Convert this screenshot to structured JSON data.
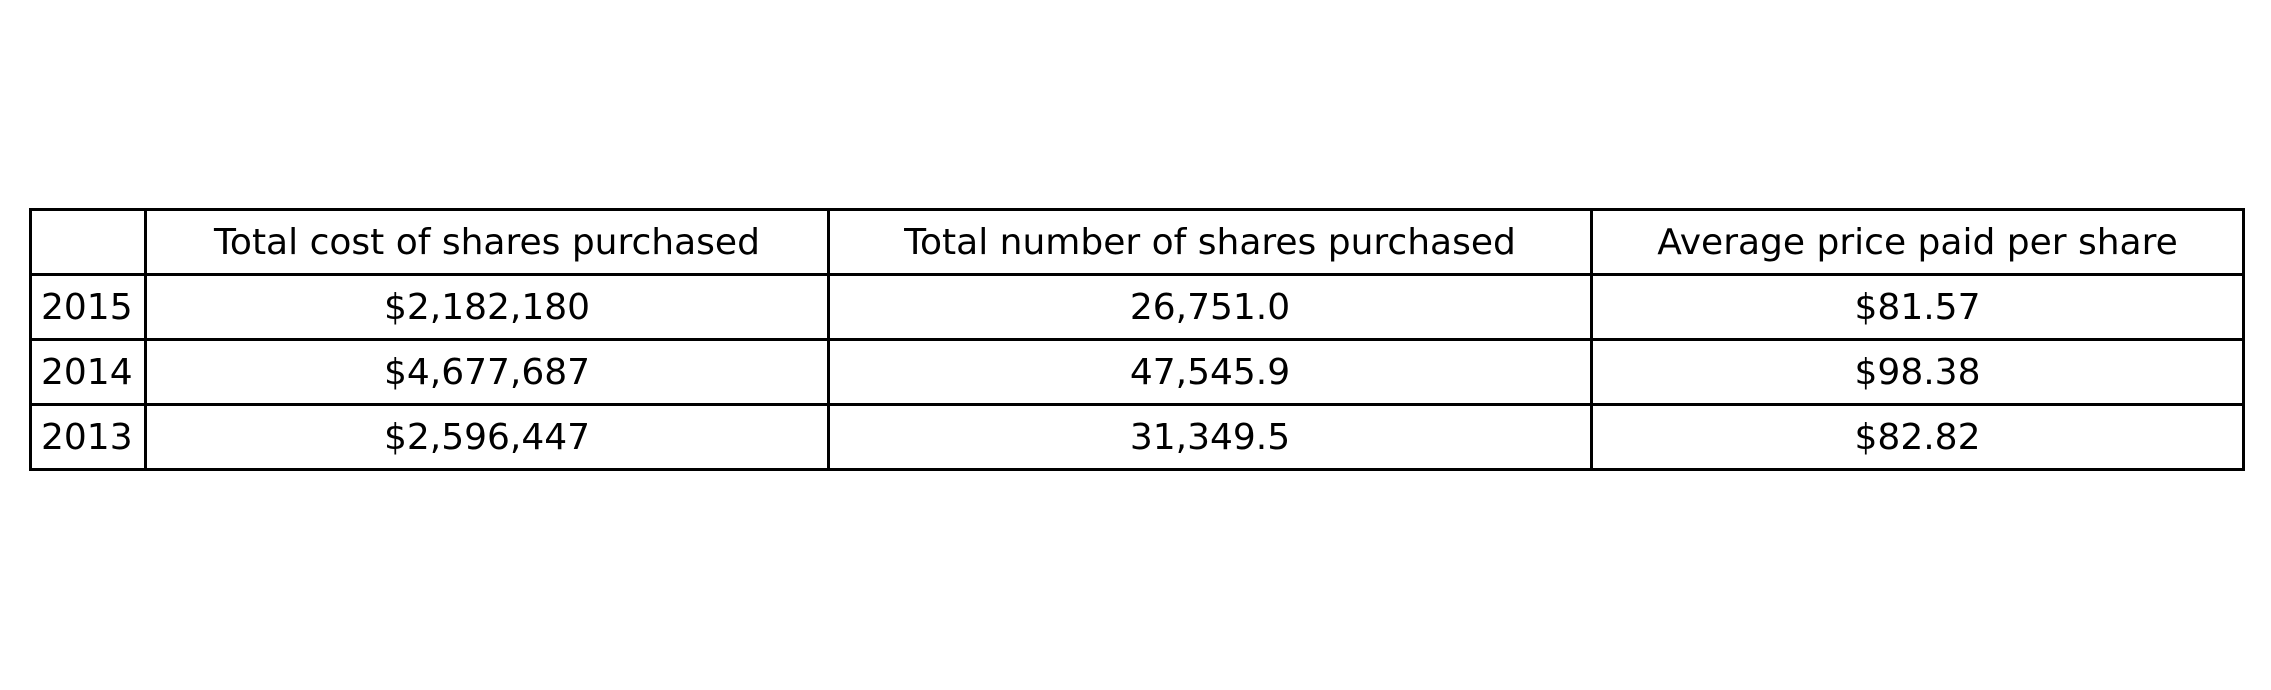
{
  "chart_data": {
    "type": "table",
    "columns": [
      "",
      "Total cost of shares purchased",
      "Total number of shares purchased",
      "Average price paid per share"
    ],
    "rows": [
      [
        "2015",
        "$2,182,180",
        "26,751.0",
        "$81.57"
      ],
      [
        "2014",
        "$4,677,687",
        "47,545.9",
        "$98.38"
      ],
      [
        "2013",
        "$2,596,447",
        "31,349.5",
        "$82.82"
      ]
    ]
  }
}
